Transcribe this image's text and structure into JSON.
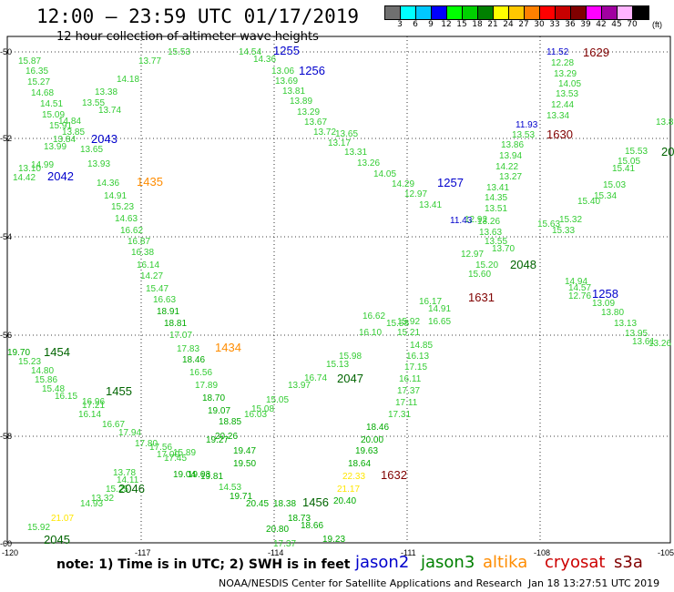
{
  "title": "12:00 – 23:59 UTC 01/17/2019",
  "subtitle": "12 hour collection of altimeter wave heights",
  "colorbar": {
    "unit": "(ft)",
    "colors": [
      "#707070",
      "#00ffff",
      "#00c8ff",
      "#0000ff",
      "#00ff00",
      "#00d000",
      "#008000",
      "#ffff00",
      "#ffc800",
      "#ff8000",
      "#ff0000",
      "#c80000",
      "#800000",
      "#ff00ff",
      "#a000a0",
      "#ffb4ff",
      "#000000"
    ],
    "labels": [
      "3",
      "6",
      "9",
      "12",
      "15",
      "18",
      "21",
      "24",
      "27",
      "30",
      "33",
      "36",
      "39",
      "42",
      "45",
      "70"
    ]
  },
  "axes": {
    "lat_labels": [
      "-50",
      "-52",
      "-54",
      "-56",
      "-58",
      "-60"
    ],
    "lon_labels": [
      "-120",
      "-117",
      "-114",
      "-111",
      "-108",
      "-105"
    ]
  },
  "footer": {
    "note": "note:  1) Time is in UTC;  2) SWH is in feet",
    "legend": [
      {
        "name": "jason2",
        "color": "#0000cc"
      },
      {
        "name": "jason3",
        "color": "#008000"
      },
      {
        "name": "altika",
        "color": "#ff8c00"
      },
      {
        "name": "cryosat",
        "color": "#cc0000"
      },
      {
        "name": "s3a",
        "color": "#800000"
      }
    ],
    "credit": "NOAA/NESDIS Center for Satellite Applications and Research",
    "timestamp": "Jan 18 13:27:51 UTC 2019"
  },
  "tracks": [
    {
      "id": "1255",
      "sat_color": "#0000cc",
      "label_color": "#0000cc"
    },
    {
      "id": "1256",
      "sat_color": "#0000cc",
      "label_color": "#0000cc"
    },
    {
      "id": "1257",
      "sat_color": "#0000cc",
      "label_color": "#0000cc"
    },
    {
      "id": "1258",
      "sat_color": "#0000cc",
      "label_color": "#0000cc"
    },
    {
      "id": "2042",
      "sat_color": "#0000cc",
      "label_color": "#0000cc"
    },
    {
      "id": "2043",
      "sat_color": "#0000cc",
      "label_color": "#0000cc"
    },
    {
      "id": "1629",
      "label_color": "#800000"
    },
    {
      "id": "1630",
      "label_color": "#800000"
    },
    {
      "id": "1631",
      "label_color": "#800000"
    },
    {
      "id": "1632",
      "label_color": "#800000"
    },
    {
      "id": "1435",
      "label_color": "#ff8c00"
    },
    {
      "id": "1434",
      "label_color": "#ff8c00"
    },
    {
      "id": "1454",
      "label_color": "#006400"
    },
    {
      "id": "1455",
      "label_color": "#006400"
    },
    {
      "id": "1456",
      "label_color": "#006400"
    },
    {
      "id": "2045",
      "label_color": "#006400"
    },
    {
      "id": "2046",
      "label_color": "#006400"
    },
    {
      "id": "2047",
      "label_color": "#006400"
    },
    {
      "id": "2048",
      "label_color": "#006400"
    },
    {
      "id": "20",
      "label_color": "#006400"
    }
  ],
  "values": [
    "15.53",
    "14.54",
    "14.36",
    "15.87",
    "16.35",
    "15.27",
    "14.68",
    "14.51",
    "15.09",
    "15.91",
    "14.84",
    "13.55",
    "13.38",
    "14.18",
    "13.77",
    "13.06",
    "13.69",
    "13.81",
    "13.89",
    "13.29",
    "13.67",
    "13.72",
    "13.17",
    "13.65",
    "13.31",
    "13.26",
    "14.05",
    "14.29",
    "12.97",
    "13.41",
    "11.52",
    "12.28",
    "13.29",
    "14.05",
    "13.53",
    "12.44",
    "13.34",
    "11.93",
    "13.53",
    "13.86",
    "13.94",
    "14.22",
    "13.27",
    "13.41",
    "14.35",
    "13.51",
    "12.92",
    "11.43",
    "13.26",
    "13.63",
    "13.55",
    "15.53",
    "15.05",
    "15.41",
    "15.03",
    "15.34",
    "15.40",
    "15.32",
    "15.33",
    "15.63",
    "15.20",
    "15.60",
    "12.97",
    "13.70",
    "14.94",
    "14.57",
    "12.76",
    "13.09",
    "13.80",
    "13.13",
    "13.95",
    "13.61",
    "13.26",
    "13.89",
    "13.65",
    "13.93",
    "14.36",
    "14.91",
    "15.23",
    "14.63",
    "16.62",
    "16.87",
    "16.38",
    "16.14",
    "14.27",
    "15.47",
    "16.63",
    "18.91",
    "18.81",
    "17.07",
    "17.83",
    "18.46",
    "16.56",
    "17.89",
    "18.70",
    "19.07",
    "18.85",
    "16.03",
    "15.08",
    "15.05",
    "13.97",
    "16.74",
    "15.13",
    "15.98",
    "16.10",
    "16.62",
    "15.58",
    "15.92",
    "15.21",
    "16.17",
    "14.91",
    "16.65",
    "14.85",
    "16.13",
    "17.15",
    "16.11",
    "17.37",
    "17.11",
    "17.31",
    "18.46",
    "20.00",
    "19.63",
    "18.64",
    "22.33",
    "21.17",
    "20.40",
    "19.23",
    "19.70",
    "15.23",
    "14.80",
    "15.86",
    "15.48",
    "16.15",
    "16.96",
    "17.21",
    "16.14",
    "16.67",
    "17.94",
    "17.80",
    "17.56",
    "17.00",
    "17.45",
    "15.89",
    "19.04",
    "19.03",
    "19.81",
    "19.47",
    "19.50",
    "20.26",
    "19.27",
    "14.53",
    "19.71",
    "20.45",
    "18.38",
    "18.73",
    "18.66",
    "17.37",
    "20.80",
    "21.07",
    "15.92",
    "14.11",
    "15.25",
    "14.93",
    "13.32",
    "13.78",
    "14.42",
    "13.10",
    "14.99",
    "13.99",
    "13.84",
    "13.85",
    "13.74",
    "14.04"
  ]
}
